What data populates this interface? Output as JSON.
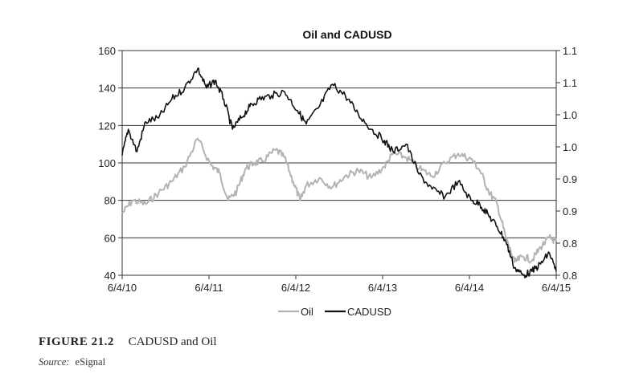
{
  "chart_data": {
    "type": "line",
    "title": "Oil and CADUSD",
    "x_ticks": [
      "6/4/10",
      "6/4/11",
      "6/4/12",
      "6/4/13",
      "6/4/14",
      "6/4/15"
    ],
    "y_left": {
      "ticks": [
        40,
        60,
        80,
        100,
        120,
        140,
        160
      ],
      "range": [
        40,
        160
      ]
    },
    "y_right": {
      "tick_labels": [
        "0.8",
        "0.8",
        "0.9",
        "0.9",
        "1.0",
        "1.0",
        "1.1",
        "1.1"
      ],
      "range": [
        0.8,
        1.1
      ]
    },
    "grid": true,
    "legend_position": "bottom",
    "series": [
      {
        "name": "Oil",
        "axis": "left",
        "color": "#b3b3b3",
        "x": [
          2010.43,
          2010.55,
          2010.7,
          2010.85,
          2011.0,
          2011.15,
          2011.3,
          2011.45,
          2011.55,
          2011.65,
          2011.75,
          2011.85,
          2011.95,
          2012.05,
          2012.2,
          2012.3,
          2012.4,
          2012.48,
          2012.55,
          2012.7,
          2012.85,
          2013.0,
          2013.15,
          2013.3,
          2013.45,
          2013.55,
          2013.7,
          2013.85,
          2014.0,
          2014.15,
          2014.3,
          2014.45,
          2014.55,
          2014.65,
          2014.75,
          2014.85,
          2014.95,
          2015.05,
          2015.15,
          2015.25,
          2015.35,
          2015.43
        ],
        "y": [
          73,
          80,
          78,
          84,
          90,
          98,
          113,
          99,
          95,
          80,
          85,
          97,
          100,
          101,
          107,
          103,
          90,
          80,
          88,
          92,
          87,
          93,
          96,
          92,
          98,
          105,
          103,
          97,
          93,
          100,
          105,
          102,
          96,
          85,
          78,
          60,
          47,
          50,
          48,
          55,
          60,
          58
        ]
      },
      {
        "name": "CADUSD",
        "axis": "right",
        "color": "#111111",
        "x": [
          2010.43,
          2010.5,
          2010.6,
          2010.7,
          2010.85,
          2011.0,
          2011.15,
          2011.3,
          2011.4,
          2011.5,
          2011.6,
          2011.7,
          2011.8,
          2011.9,
          2012.0,
          2012.15,
          2012.3,
          2012.45,
          2012.55,
          2012.7,
          2012.85,
          2013.0,
          2013.15,
          2013.3,
          2013.45,
          2013.55,
          2013.7,
          2013.85,
          2014.0,
          2014.15,
          2014.3,
          2014.45,
          2014.55,
          2014.65,
          2014.75,
          2014.85,
          2014.95,
          2015.05,
          2015.15,
          2015.25,
          2015.35,
          2015.43
        ],
        "y": [
          0.96,
          0.995,
          0.965,
          1.005,
          1.01,
          1.035,
          1.05,
          1.076,
          1.05,
          1.06,
          1.035,
          0.995,
          1.01,
          1.025,
          1.035,
          1.04,
          1.045,
          1.02,
          1.002,
          1.025,
          1.055,
          1.04,
          1.015,
          0.995,
          0.98,
          0.965,
          0.975,
          0.935,
          0.915,
          0.905,
          0.925,
          0.9,
          0.895,
          0.88,
          0.865,
          0.845,
          0.81,
          0.8,
          0.805,
          0.815,
          0.83,
          0.805
        ]
      }
    ]
  },
  "caption": {
    "figure_label": "FIGURE 21.2",
    "figure_title": "CADUSD and Oil"
  },
  "source": {
    "label": "Source:",
    "value": "eSignal"
  }
}
